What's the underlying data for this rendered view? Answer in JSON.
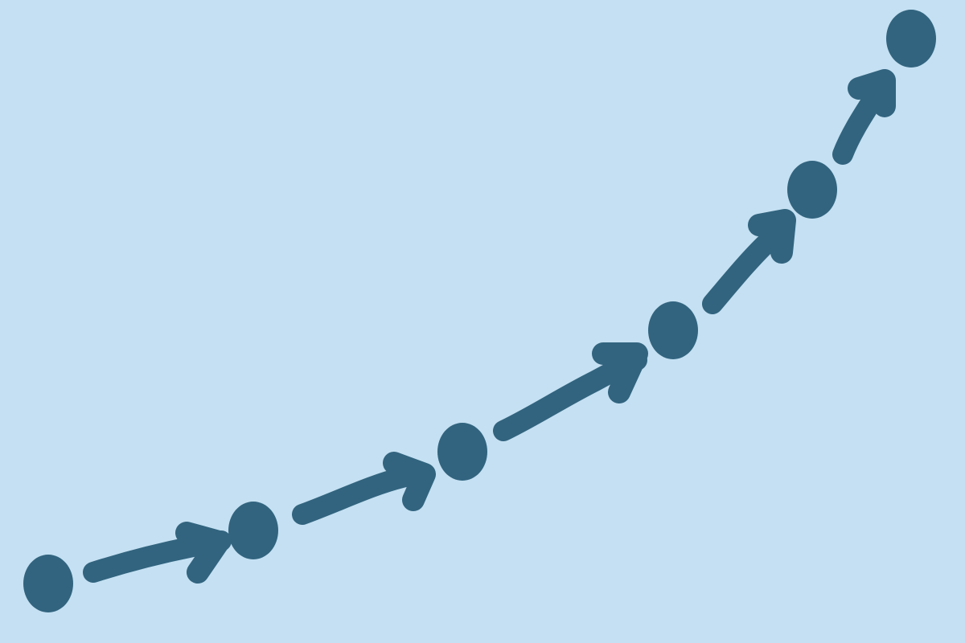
{
  "colors": {
    "background": "#c4e0f2",
    "ink": "#32647f"
  },
  "diagram": {
    "kind": "progression-path",
    "nodes": [
      {
        "id": "step-1"
      },
      {
        "id": "step-2"
      },
      {
        "id": "step-3"
      },
      {
        "id": "step-4"
      },
      {
        "id": "step-5"
      },
      {
        "id": "step-6"
      }
    ],
    "connectors": [
      {
        "from": "step-1",
        "to": "step-2",
        "icon": "arrow-right-icon"
      },
      {
        "from": "step-2",
        "to": "step-3",
        "icon": "arrow-right-icon"
      },
      {
        "from": "step-3",
        "to": "step-4",
        "icon": "arrow-right-icon"
      },
      {
        "from": "step-4",
        "to": "step-5",
        "icon": "arrow-right-icon"
      },
      {
        "from": "step-5",
        "to": "step-6",
        "icon": "arrow-right-icon"
      }
    ]
  }
}
